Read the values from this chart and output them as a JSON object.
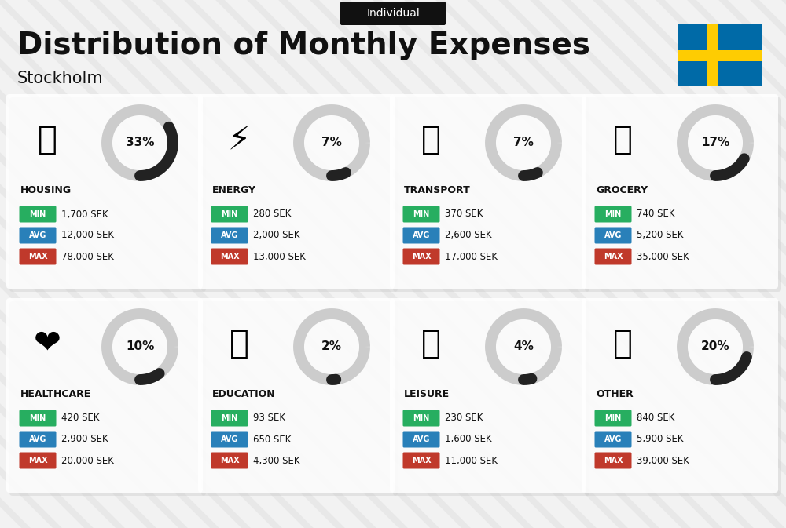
{
  "title": "Distribution of Monthly Expenses",
  "subtitle": "Stockholm",
  "tag": "Individual",
  "background_color": "#f2f2f2",
  "categories": [
    {
      "name": "HOUSING",
      "percent": 33,
      "min": "1,700 SEK",
      "avg": "12,000 SEK",
      "max": "78,000 SEK",
      "icon": "🏢",
      "row": 0,
      "col": 0
    },
    {
      "name": "ENERGY",
      "percent": 7,
      "min": "280 SEK",
      "avg": "2,000 SEK",
      "max": "13,000 SEK",
      "icon": "⚡",
      "row": 0,
      "col": 1
    },
    {
      "name": "TRANSPORT",
      "percent": 7,
      "min": "370 SEK",
      "avg": "2,600 SEK",
      "max": "17,000 SEK",
      "icon": "🚌",
      "row": 0,
      "col": 2
    },
    {
      "name": "GROCERY",
      "percent": 17,
      "min": "740 SEK",
      "avg": "5,200 SEK",
      "max": "35,000 SEK",
      "icon": "🛒",
      "row": 0,
      "col": 3
    },
    {
      "name": "HEALTHCARE",
      "percent": 10,
      "min": "420 SEK",
      "avg": "2,900 SEK",
      "max": "20,000 SEK",
      "icon": "❤️",
      "row": 1,
      "col": 0
    },
    {
      "name": "EDUCATION",
      "percent": 2,
      "min": "93 SEK",
      "avg": "650 SEK",
      "max": "4,300 SEK",
      "icon": "🎓",
      "row": 1,
      "col": 1
    },
    {
      "name": "LEISURE",
      "percent": 4,
      "min": "230 SEK",
      "avg": "1,600 SEK",
      "max": "11,000 SEK",
      "icon": "🛍️",
      "row": 1,
      "col": 2
    },
    {
      "name": "OTHER",
      "percent": 20,
      "min": "840 SEK",
      "avg": "5,900 SEK",
      "max": "39,000 SEK",
      "icon": "💰",
      "row": 1,
      "col": 3
    }
  ],
  "min_color": "#27ae60",
  "avg_color": "#2980b9",
  "max_color": "#c0392b",
  "text_color": "#111111",
  "arc_bg_color": "#cccccc",
  "arc_fill_color": "#222222",
  "flag_blue": "#006AA7",
  "flag_yellow": "#FECC02",
  "stripe_color": "#e8e8e8"
}
